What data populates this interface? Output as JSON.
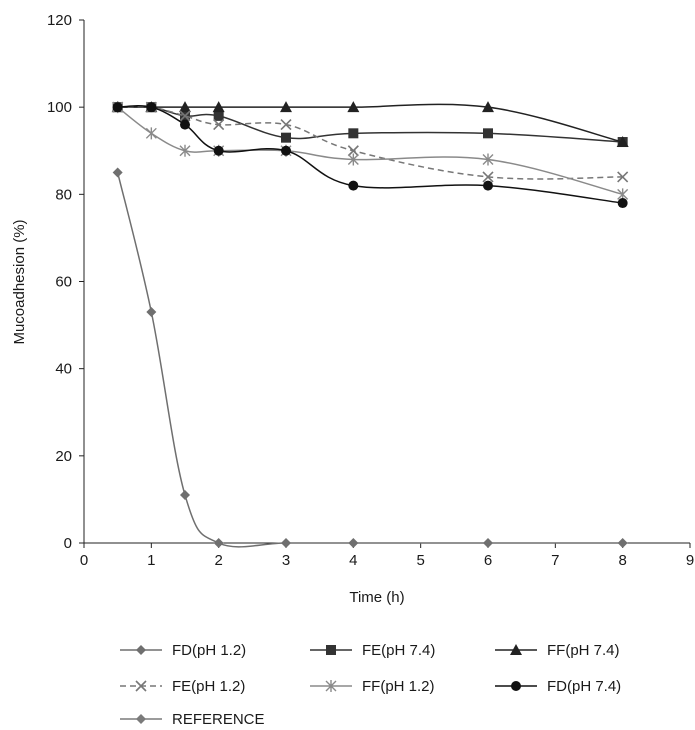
{
  "chart_data": {
    "type": "line",
    "title": "",
    "xlabel": "Time (h)",
    "ylabel": "Mucoadhesion (%)",
    "xlim": [
      0,
      9
    ],
    "ylim": [
      0,
      120
    ],
    "x_ticks": [
      "0",
      "1",
      "2",
      "3",
      "4",
      "5",
      "6",
      "7",
      "8",
      "9"
    ],
    "y_ticks": [
      "0",
      "20",
      "40",
      "60",
      "80",
      "100",
      "120"
    ],
    "grid": false,
    "legend_position": "bottom",
    "series": [
      {
        "name": "FD(pH 1.2)",
        "marker": "diamond",
        "color": "#6f6f6f",
        "dash": "",
        "x": [
          0.5,
          1,
          1.5,
          2,
          3,
          4,
          6,
          8
        ],
        "y": [
          85,
          53,
          11,
          0,
          0,
          0,
          0,
          0
        ]
      },
      {
        "name": "FE(pH 7.4)",
        "marker": "square",
        "color": "#333333",
        "dash": "",
        "x": [
          0.5,
          1,
          1.5,
          2,
          3,
          4,
          6,
          8
        ],
        "y": [
          100,
          100,
          98,
          98,
          93,
          94,
          94,
          92
        ]
      },
      {
        "name": "FF(pH 7.4)",
        "marker": "triangle",
        "color": "#222222",
        "dash": "",
        "x": [
          0.5,
          1,
          1.5,
          2,
          3,
          4,
          6,
          8
        ],
        "y": [
          100,
          100,
          100,
          100,
          100,
          100,
          100,
          92
        ]
      },
      {
        "name": "FE(pH 1.2)",
        "marker": "x",
        "color": "#777777",
        "dash": "6 4",
        "x": [
          0.5,
          1,
          1.5,
          2,
          3,
          4,
          6,
          8
        ],
        "y": [
          100,
          100,
          98,
          96,
          96,
          90,
          84,
          84
        ]
      },
      {
        "name": "FF(pH 1.2)",
        "marker": "asterisk",
        "color": "#8a8a8a",
        "dash": "",
        "x": [
          0.5,
          1,
          1.5,
          2,
          3,
          4,
          6,
          8
        ],
        "y": [
          100,
          94,
          90,
          90,
          90,
          88,
          88,
          80
        ]
      },
      {
        "name": "FD(pH 7.4)",
        "marker": "circle",
        "color": "#111111",
        "dash": "",
        "x": [
          0.5,
          1,
          1.5,
          2,
          3,
          4,
          6,
          8
        ],
        "y": [
          100,
          100,
          96,
          90,
          90,
          82,
          82,
          78
        ]
      },
      {
        "name": "REFERENCE",
        "marker": "diamond",
        "color": "#7a7a7a",
        "dash": "",
        "x": [],
        "y": []
      }
    ]
  }
}
